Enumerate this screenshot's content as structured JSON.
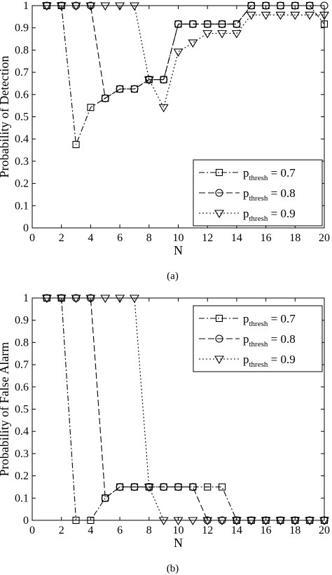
{
  "chart_data": [
    {
      "type": "line",
      "panel_label": "(a)",
      "xlabel": "N",
      "ylabel": "Probability of Detection",
      "xlim": [
        0,
        20
      ],
      "ylim": [
        0,
        1
      ],
      "xticks": [
        0,
        2,
        4,
        6,
        8,
        10,
        12,
        14,
        16,
        18,
        20
      ],
      "yticks": [
        0,
        0.1,
        0.2,
        0.3,
        0.4,
        0.5,
        0.6,
        0.7,
        0.8,
        0.9,
        1
      ],
      "x": [
        1,
        2,
        3,
        4,
        5,
        6,
        7,
        8,
        9,
        10,
        11,
        12,
        13,
        14,
        15,
        16,
        17,
        18,
        19,
        20
      ],
      "legend_position": "bottom-right",
      "grid": false,
      "series": [
        {
          "name": "p",
          "subscript": "thresh",
          "suffix": " = 0.7",
          "marker": "square",
          "dash": "dash-dot",
          "values": [
            1,
            1,
            0.375,
            0.542,
            0.583,
            0.625,
            0.625,
            0.667,
            0.667,
            0.917,
            0.917,
            0.917,
            0.917,
            0.917,
            1,
            1,
            1,
            1,
            1,
            0.917
          ]
        },
        {
          "name": "p",
          "subscript": "thresh",
          "suffix": " = 0.8",
          "marker": "circle",
          "dash": "dashed",
          "values": [
            1,
            1,
            1,
            1,
            0.583,
            0.625,
            0.625,
            0.667,
            0.667,
            0.917,
            0.917,
            0.917,
            0.917,
            0.917,
            1,
            1,
            1,
            1,
            1,
            1
          ]
        },
        {
          "name": "p",
          "subscript": "thresh",
          "suffix": " = 0.9",
          "marker": "triangle-down",
          "dash": "dotted",
          "values": [
            1,
            1,
            1,
            1,
            1,
            1,
            1,
            0.667,
            0.542,
            0.792,
            0.833,
            0.875,
            0.875,
            0.875,
            0.958,
            0.958,
            0.958,
            0.958,
            0.958,
            0.958
          ]
        }
      ]
    },
    {
      "type": "line",
      "panel_label": "(b)",
      "xlabel": "N",
      "ylabel": "Probability of False Alarm",
      "xlim": [
        0,
        20
      ],
      "ylim": [
        0,
        1
      ],
      "xticks": [
        0,
        2,
        4,
        6,
        8,
        10,
        12,
        14,
        16,
        18,
        20
      ],
      "yticks": [
        0,
        0.1,
        0.2,
        0.3,
        0.4,
        0.5,
        0.6,
        0.7,
        0.8,
        0.9,
        1
      ],
      "x": [
        1,
        2,
        3,
        4,
        5,
        6,
        7,
        8,
        9,
        10,
        11,
        12,
        13,
        14,
        15,
        16,
        17,
        18,
        19,
        20
      ],
      "legend_position": "top-right",
      "grid": false,
      "series": [
        {
          "name": "p",
          "subscript": "thresh",
          "suffix": " = 0.7",
          "marker": "square",
          "dash": "dash-dot",
          "values": [
            1,
            1,
            0,
            0,
            0.1,
            0.15,
            0.15,
            0.15,
            0.15,
            0.15,
            0.15,
            0.15,
            0.15,
            0,
            0,
            0,
            0,
            0,
            0,
            0
          ]
        },
        {
          "name": "p",
          "subscript": "thresh",
          "suffix": " = 0.8",
          "marker": "circle",
          "dash": "dashed",
          "values": [
            1,
            1,
            1,
            1,
            0.1,
            0.15,
            0.15,
            0.15,
            0.15,
            0.15,
            0.15,
            0,
            0,
            0,
            0,
            0,
            0,
            0,
            0,
            0
          ]
        },
        {
          "name": "p",
          "subscript": "thresh",
          "suffix": " = 0.9",
          "marker": "triangle-down",
          "dash": "dotted",
          "values": [
            1,
            1,
            1,
            1,
            1,
            1,
            1,
            0.15,
            0,
            0,
            0,
            0,
            0,
            0,
            0,
            0,
            0,
            0,
            0,
            0
          ]
        }
      ]
    }
  ]
}
